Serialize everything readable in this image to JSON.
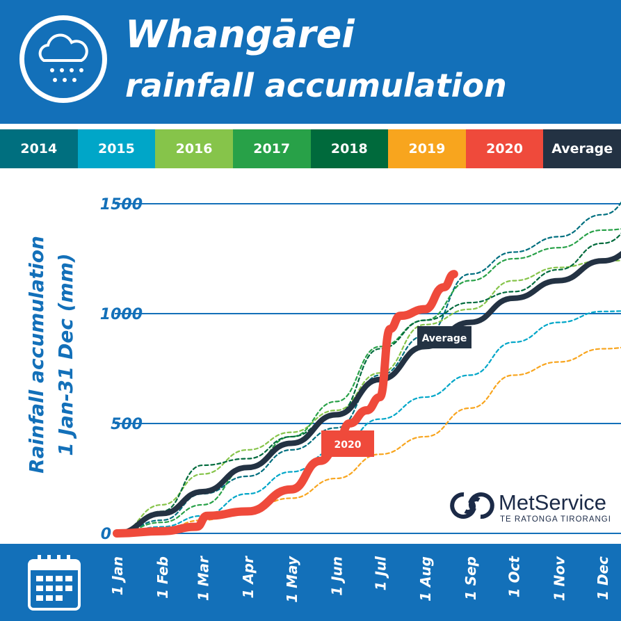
{
  "header": {
    "title_line1": "Whangārei",
    "title_line2": "rainfall accumulation",
    "icon": "rain-cloud-icon"
  },
  "legend": [
    {
      "label": "2014",
      "color": "#006f7f"
    },
    {
      "label": "2015",
      "color": "#00a6c8"
    },
    {
      "label": "2016",
      "color": "#86c44a"
    },
    {
      "label": "2017",
      "color": "#28a148"
    },
    {
      "label": "2018",
      "color": "#006a3c"
    },
    {
      "label": "2019",
      "color": "#f8a51e"
    },
    {
      "label": "2020",
      "color": "#ef4a3b"
    },
    {
      "label": "Average",
      "color": "#233243"
    }
  ],
  "logo": {
    "name": "MetService",
    "subtitle": "TE RATONGA TIRORANGI"
  },
  "chart_data": {
    "type": "line",
    "ylabel_line1": "Rainfall accumulation",
    "ylabel_line2": "1 Jan-31 Dec (mm)",
    "ylim": [
      0,
      1600
    ],
    "yticks": [
      0,
      500,
      1000,
      1500
    ],
    "xticks": [
      "1 Jan",
      "1 Feb",
      "1 Mar",
      "1 Apr",
      "1 May",
      "1 Jun",
      "1 Jul",
      "1 Aug",
      "1 Sep",
      "1 Oct",
      "1 Nov",
      "1 Dec"
    ],
    "xtick_days": [
      0,
      31,
      59,
      90,
      120,
      151,
      181,
      212,
      243,
      273,
      304,
      334
    ],
    "x_days": [
      0,
      31,
      59,
      90,
      120,
      151,
      181,
      212,
      243,
      273,
      304,
      334,
      364
    ],
    "series": [
      {
        "name": "2014",
        "values": [
          0,
          60,
          180,
          260,
          380,
          480,
          720,
          900,
          1180,
          1280,
          1350,
          1450,
          1600
        ]
      },
      {
        "name": "2015",
        "values": [
          0,
          30,
          80,
          180,
          280,
          380,
          520,
          620,
          720,
          870,
          960,
          1010,
          1015
        ]
      },
      {
        "name": "2016",
        "values": [
          0,
          130,
          270,
          380,
          460,
          560,
          730,
          950,
          1020,
          1150,
          1210,
          1240,
          1245
        ]
      },
      {
        "name": "2017",
        "values": [
          0,
          50,
          130,
          300,
          440,
          600,
          850,
          970,
          1150,
          1250,
          1300,
          1380,
          1395
        ]
      },
      {
        "name": "2018",
        "values": [
          0,
          100,
          310,
          340,
          440,
          540,
          840,
          970,
          1050,
          1100,
          1200,
          1320,
          1440
        ]
      },
      {
        "name": "2019",
        "values": [
          0,
          20,
          60,
          110,
          160,
          250,
          360,
          440,
          570,
          720,
          780,
          840,
          855
        ]
      },
      {
        "name": "Average",
        "values": [
          0,
          90,
          190,
          300,
          410,
          540,
          700,
          850,
          960,
          1070,
          1150,
          1240,
          1320
        ]
      }
    ],
    "series_2020": {
      "name": "2020",
      "days": [
        0,
        31,
        55,
        62,
        90,
        120,
        140,
        151,
        160,
        172,
        181,
        188,
        195,
        212,
        225,
        232
      ],
      "values": [
        0,
        10,
        30,
        80,
        100,
        200,
        330,
        385,
        500,
        560,
        620,
        930,
        990,
        1020,
        1120,
        1180
      ]
    },
    "annotations": [
      {
        "label": "Average"
      },
      {
        "label": "2020"
      }
    ]
  }
}
